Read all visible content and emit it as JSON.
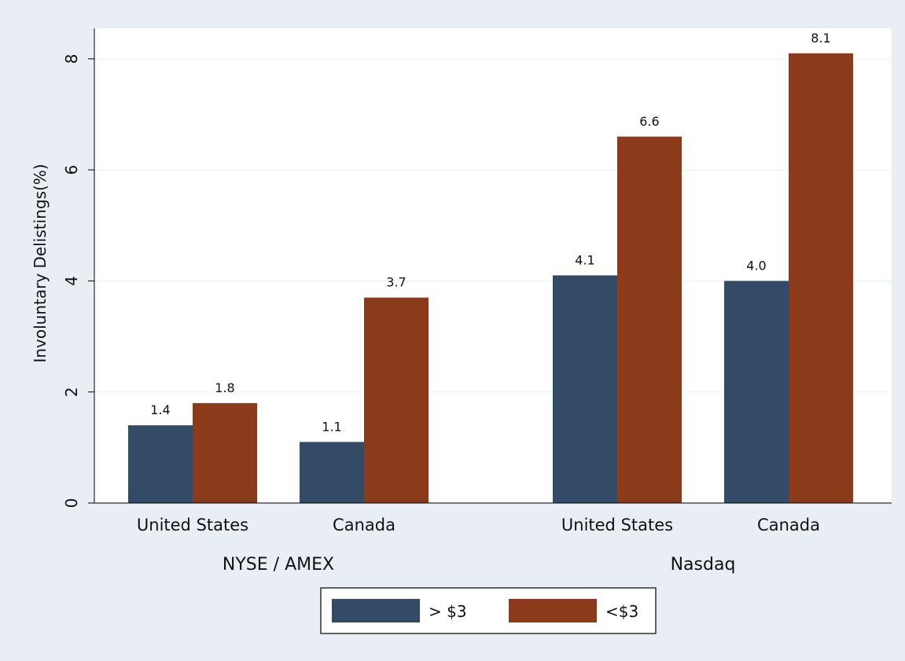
{
  "chart_data": {
    "type": "bar",
    "title": "",
    "ylabel": "Involuntary Delistings(%)",
    "xlabel": "",
    "ylim": [
      0,
      8.55
    ],
    "yticks": [
      0,
      2,
      4,
      6,
      8
    ],
    "grid": true,
    "legend_position": "bottom-center",
    "groups": [
      {
        "label": "NYSE / AMEX",
        "categories": [
          {
            "label": "United States",
            "values": [
              1.4,
              1.8
            ],
            "data_labels": [
              "1.4",
              "1.8"
            ]
          },
          {
            "label": "Canada",
            "values": [
              1.1,
              3.7
            ],
            "data_labels": [
              "1.1",
              "3.7"
            ]
          }
        ]
      },
      {
        "label": "Nasdaq",
        "categories": [
          {
            "label": "United States",
            "values": [
              4.1,
              6.6
            ],
            "data_labels": [
              "4.1",
              "6.6"
            ]
          },
          {
            "label": "Canada",
            "values": [
              4.0,
              8.1
            ],
            "data_labels": [
              "4.0",
              "8.1"
            ]
          }
        ]
      }
    ],
    "series": [
      {
        "name": "> $3",
        "color": "#334b66"
      },
      {
        "name": "<$3",
        "color": "#8b3a1a"
      }
    ]
  }
}
